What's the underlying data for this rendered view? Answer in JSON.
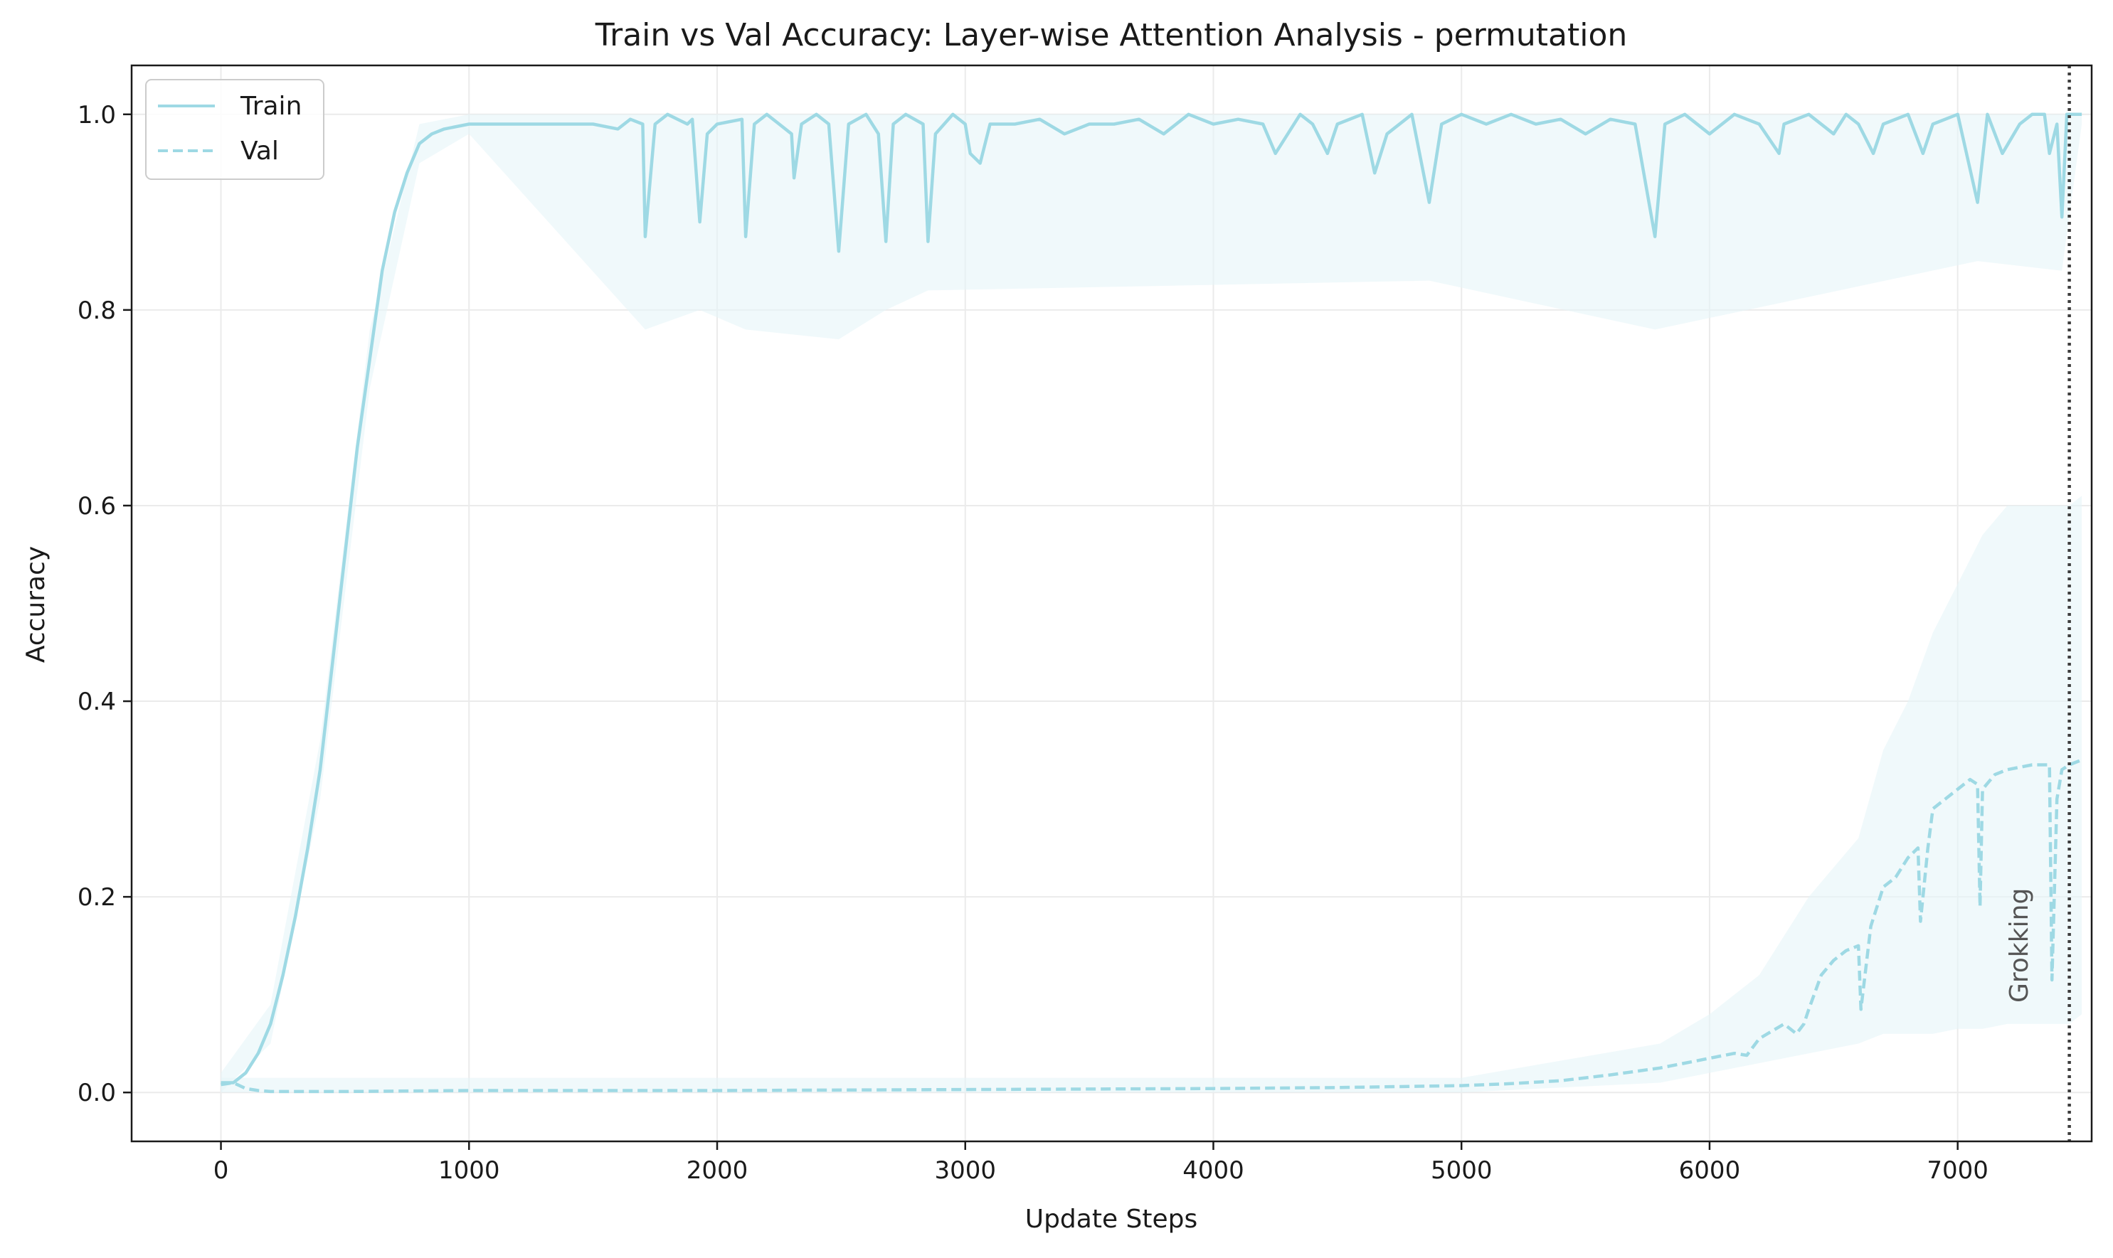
{
  "colors": {
    "series": "#9ed9e4",
    "band": "#e6f5f9",
    "grid": "#ebebeb",
    "axis": "#1a1a1a",
    "vline": "#3d3d3d"
  },
  "chart_data": {
    "type": "line",
    "title": "Train vs Val Accuracy: Layer-wise Attention Analysis - permutation",
    "xlabel": "Update Steps",
    "ylabel": "Accuracy",
    "xlim": [
      -360,
      7540
    ],
    "ylim": [
      -0.05,
      1.05
    ],
    "xticks": [
      0,
      1000,
      2000,
      3000,
      4000,
      5000,
      6000,
      7000
    ],
    "xtick_labels": [
      "0",
      "1000",
      "2000",
      "3000",
      "4000",
      "5000",
      "6000",
      "7000"
    ],
    "yticks": [
      0.0,
      0.2,
      0.4,
      0.6,
      0.8,
      1.0
    ],
    "ytick_labels": [
      "0.0",
      "0.2",
      "0.4",
      "0.6",
      "0.8",
      "1.0"
    ],
    "grid": true,
    "legend_position": "top-left",
    "annotation": {
      "text": "Grokking",
      "x": 7450
    },
    "series": [
      {
        "name": "Train",
        "style": "solid",
        "points": [
          [
            0,
            0.01
          ],
          [
            50,
            0.01
          ],
          [
            100,
            0.02
          ],
          [
            150,
            0.04
          ],
          [
            200,
            0.07
          ],
          [
            250,
            0.12
          ],
          [
            300,
            0.18
          ],
          [
            350,
            0.25
          ],
          [
            400,
            0.33
          ],
          [
            450,
            0.44
          ],
          [
            500,
            0.55
          ],
          [
            550,
            0.66
          ],
          [
            600,
            0.75
          ],
          [
            650,
            0.84
          ],
          [
            700,
            0.9
          ],
          [
            750,
            0.94
          ],
          [
            800,
            0.97
          ],
          [
            850,
            0.98
          ],
          [
            900,
            0.985
          ],
          [
            1000,
            0.99
          ],
          [
            1100,
            0.99
          ],
          [
            1200,
            0.99
          ],
          [
            1300,
            0.99
          ],
          [
            1400,
            0.99
          ],
          [
            1500,
            0.99
          ],
          [
            1600,
            0.985
          ],
          [
            1650,
            0.995
          ],
          [
            1700,
            0.99
          ],
          [
            1710,
            0.875
          ],
          [
            1750,
            0.99
          ],
          [
            1800,
            1.0
          ],
          [
            1880,
            0.99
          ],
          [
            1900,
            0.995
          ],
          [
            1930,
            0.89
          ],
          [
            1960,
            0.98
          ],
          [
            2000,
            0.99
          ],
          [
            2100,
            0.995
          ],
          [
            2115,
            0.875
          ],
          [
            2150,
            0.99
          ],
          [
            2200,
            1.0
          ],
          [
            2250,
            0.99
          ],
          [
            2300,
            0.98
          ],
          [
            2310,
            0.935
          ],
          [
            2340,
            0.99
          ],
          [
            2400,
            1.0
          ],
          [
            2450,
            0.99
          ],
          [
            2490,
            0.86
          ],
          [
            2530,
            0.99
          ],
          [
            2600,
            1.0
          ],
          [
            2650,
            0.98
          ],
          [
            2680,
            0.87
          ],
          [
            2710,
            0.99
          ],
          [
            2760,
            1.0
          ],
          [
            2830,
            0.99
          ],
          [
            2850,
            0.87
          ],
          [
            2880,
            0.98
          ],
          [
            2950,
            1.0
          ],
          [
            3000,
            0.99
          ],
          [
            3020,
            0.96
          ],
          [
            3060,
            0.95
          ],
          [
            3100,
            0.99
          ],
          [
            3200,
            0.99
          ],
          [
            3300,
            0.995
          ],
          [
            3400,
            0.98
          ],
          [
            3500,
            0.99
          ],
          [
            3600,
            0.99
          ],
          [
            3700,
            0.995
          ],
          [
            3800,
            0.98
          ],
          [
            3900,
            1.0
          ],
          [
            4000,
            0.99
          ],
          [
            4100,
            0.995
          ],
          [
            4200,
            0.99
          ],
          [
            4250,
            0.96
          ],
          [
            4300,
            0.98
          ],
          [
            4350,
            1.0
          ],
          [
            4400,
            0.99
          ],
          [
            4460,
            0.96
          ],
          [
            4500,
            0.99
          ],
          [
            4600,
            1.0
          ],
          [
            4650,
            0.94
          ],
          [
            4700,
            0.98
          ],
          [
            4800,
            1.0
          ],
          [
            4870,
            0.91
          ],
          [
            4920,
            0.99
          ],
          [
            5000,
            1.0
          ],
          [
            5100,
            0.99
          ],
          [
            5200,
            1.0
          ],
          [
            5300,
            0.99
          ],
          [
            5400,
            0.995
          ],
          [
            5500,
            0.98
          ],
          [
            5600,
            0.995
          ],
          [
            5700,
            0.99
          ],
          [
            5780,
            0.875
          ],
          [
            5820,
            0.99
          ],
          [
            5900,
            1.0
          ],
          [
            6000,
            0.98
          ],
          [
            6100,
            1.0
          ],
          [
            6200,
            0.99
          ],
          [
            6280,
            0.96
          ],
          [
            6300,
            0.99
          ],
          [
            6400,
            1.0
          ],
          [
            6500,
            0.98
          ],
          [
            6550,
            1.0
          ],
          [
            6600,
            0.99
          ],
          [
            6660,
            0.96
          ],
          [
            6700,
            0.99
          ],
          [
            6800,
            1.0
          ],
          [
            6860,
            0.96
          ],
          [
            6900,
            0.99
          ],
          [
            7000,
            1.0
          ],
          [
            7080,
            0.91
          ],
          [
            7120,
            1.0
          ],
          [
            7180,
            0.96
          ],
          [
            7250,
            0.99
          ],
          [
            7300,
            1.0
          ],
          [
            7350,
            1.0
          ],
          [
            7370,
            0.96
          ],
          [
            7400,
            0.99
          ],
          [
            7420,
            0.895
          ],
          [
            7440,
            1.0
          ],
          [
            7500,
            1.0
          ]
        ],
        "band": [
          [
            0,
            0.0,
            0.02
          ],
          [
            200,
            0.05,
            0.09
          ],
          [
            400,
            0.3,
            0.36
          ],
          [
            600,
            0.72,
            0.78
          ],
          [
            800,
            0.95,
            0.99
          ],
          [
            1000,
            0.98,
            1.0
          ],
          [
            1710,
            0.78,
            1.0
          ],
          [
            1930,
            0.8,
            1.0
          ],
          [
            2115,
            0.78,
            1.0
          ],
          [
            2490,
            0.77,
            1.0
          ],
          [
            2680,
            0.8,
            1.0
          ],
          [
            2850,
            0.82,
            1.0
          ],
          [
            4870,
            0.83,
            1.0
          ],
          [
            5780,
            0.78,
            1.0
          ],
          [
            7080,
            0.85,
            1.0
          ],
          [
            7420,
            0.84,
            1.0
          ],
          [
            7500,
            0.99,
            1.0
          ]
        ]
      },
      {
        "name": "Val",
        "style": "dashed",
        "points": [
          [
            0,
            0.008
          ],
          [
            50,
            0.01
          ],
          [
            100,
            0.004
          ],
          [
            150,
            0.002
          ],
          [
            200,
            0.001
          ],
          [
            500,
            0.001
          ],
          [
            1000,
            0.002
          ],
          [
            2000,
            0.002
          ],
          [
            3000,
            0.003
          ],
          [
            4000,
            0.004
          ],
          [
            4500,
            0.005
          ],
          [
            5000,
            0.007
          ],
          [
            5200,
            0.009
          ],
          [
            5400,
            0.012
          ],
          [
            5600,
            0.018
          ],
          [
            5800,
            0.025
          ],
          [
            5900,
            0.03
          ],
          [
            6000,
            0.035
          ],
          [
            6100,
            0.04
          ],
          [
            6150,
            0.038
          ],
          [
            6200,
            0.055
          ],
          [
            6300,
            0.07
          ],
          [
            6350,
            0.06
          ],
          [
            6380,
            0.07
          ],
          [
            6400,
            0.085
          ],
          [
            6450,
            0.12
          ],
          [
            6500,
            0.135
          ],
          [
            6550,
            0.145
          ],
          [
            6600,
            0.15
          ],
          [
            6610,
            0.085
          ],
          [
            6650,
            0.17
          ],
          [
            6700,
            0.21
          ],
          [
            6750,
            0.22
          ],
          [
            6800,
            0.24
          ],
          [
            6840,
            0.25
          ],
          [
            6850,
            0.175
          ],
          [
            6880,
            0.25
          ],
          [
            6900,
            0.29
          ],
          [
            6950,
            0.3
          ],
          [
            7000,
            0.31
          ],
          [
            7050,
            0.32
          ],
          [
            7080,
            0.315
          ],
          [
            7090,
            0.19
          ],
          [
            7100,
            0.31
          ],
          [
            7150,
            0.325
          ],
          [
            7200,
            0.33
          ],
          [
            7300,
            0.335
          ],
          [
            7370,
            0.335
          ],
          [
            7380,
            0.115
          ],
          [
            7400,
            0.3
          ],
          [
            7420,
            0.33
          ],
          [
            7450,
            0.335
          ],
          [
            7500,
            0.34
          ]
        ],
        "band": [
          [
            0,
            0.0,
            0.015
          ],
          [
            5000,
            0.0,
            0.015
          ],
          [
            5800,
            0.01,
            0.05
          ],
          [
            6000,
            0.02,
            0.08
          ],
          [
            6200,
            0.03,
            0.12
          ],
          [
            6400,
            0.04,
            0.2
          ],
          [
            6600,
            0.05,
            0.26
          ],
          [
            6700,
            0.06,
            0.35
          ],
          [
            6800,
            0.06,
            0.4
          ],
          [
            6900,
            0.06,
            0.47
          ],
          [
            7000,
            0.065,
            0.52
          ],
          [
            7100,
            0.065,
            0.57
          ],
          [
            7200,
            0.07,
            0.6
          ],
          [
            7300,
            0.07,
            0.6
          ],
          [
            7380,
            0.07,
            0.6
          ],
          [
            7450,
            0.07,
            0.6
          ],
          [
            7500,
            0.08,
            0.61
          ]
        ]
      }
    ]
  }
}
